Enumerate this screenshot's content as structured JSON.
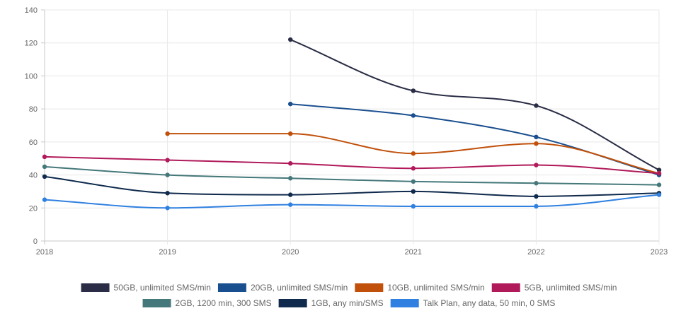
{
  "chart_data": {
    "type": "line",
    "title": "",
    "xlabel": "",
    "ylabel": "",
    "x": [
      "2018",
      "2019",
      "2020",
      "2021",
      "2022",
      "2023"
    ],
    "ylim": [
      0,
      140
    ],
    "y_ticks": [
      "0",
      "20",
      "40",
      "60",
      "80",
      "100",
      "120",
      "140"
    ],
    "grid": true,
    "legend_position": "bottom",
    "series": [
      {
        "name": "50GB, unlimited SMS/min",
        "color": "#2a2d45",
        "values": [
          null,
          null,
          122,
          91,
          82,
          43
        ]
      },
      {
        "name": "20GB, unlimited SMS/min",
        "color": "#1a4f8f",
        "values": [
          null,
          null,
          83,
          76,
          63,
          40
        ]
      },
      {
        "name": "10GB, unlimited SMS/min",
        "color": "#c0500a",
        "values": [
          null,
          65,
          65,
          53,
          59,
          41
        ]
      },
      {
        "name": "5GB, unlimited SMS/min",
        "color": "#b0195a",
        "values": [
          51,
          49,
          47,
          44,
          46,
          41
        ]
      },
      {
        "name": "2GB, 1200 min, 300 SMS",
        "color": "#45787a",
        "values": [
          45,
          40,
          38,
          36,
          35,
          34
        ]
      },
      {
        "name": "1GB, any min/SMS",
        "color": "#0f2a4c",
        "values": [
          39,
          29,
          28,
          30,
          27,
          29
        ]
      },
      {
        "name": "Talk Plan, any data, 50 min, 0 SMS",
        "color": "#2f80e0",
        "values": [
          25,
          20,
          22,
          21,
          21,
          28
        ]
      }
    ]
  }
}
